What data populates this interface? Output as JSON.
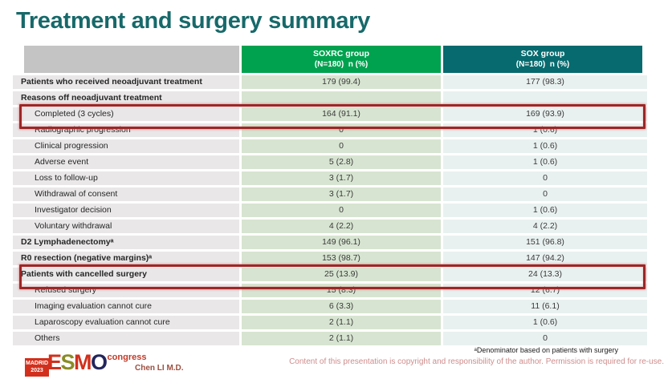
{
  "slide": {
    "title": "Treatment and surgery summary"
  },
  "table": {
    "columns": [
      {
        "label_line1": "SOXRC group",
        "label_line2": "(N=180)  n (%)"
      },
      {
        "label_line1": "SOX group",
        "label_line2": "(N=180)  n (%)"
      }
    ],
    "rows": [
      {
        "label": "Patients who received neoadjuvant treatment",
        "bold": true,
        "indent": false,
        "soxrc": "179 (99.4)",
        "sox": "177 (98.3)",
        "highlighted": false
      },
      {
        "label": "Reasons off neoadjuvant treatment",
        "bold": true,
        "indent": false,
        "soxrc": "",
        "sox": "",
        "highlighted": false
      },
      {
        "label": "Completed (3 cycles)",
        "bold": false,
        "indent": true,
        "soxrc": "164 (91.1)",
        "sox": "169 (93.9)",
        "highlighted": true
      },
      {
        "label": "Radiographic progression",
        "bold": false,
        "indent": true,
        "soxrc": "0",
        "sox": "1 (0.6)",
        "highlighted": false
      },
      {
        "label": "Clinical progression",
        "bold": false,
        "indent": true,
        "soxrc": "0",
        "sox": "1 (0.6)",
        "highlighted": false
      },
      {
        "label": "Adverse event",
        "bold": false,
        "indent": true,
        "soxrc": "5 (2.8)",
        "sox": "1 (0.6)",
        "highlighted": false
      },
      {
        "label": "Loss to follow-up",
        "bold": false,
        "indent": true,
        "soxrc": "3 (1.7)",
        "sox": "0",
        "highlighted": false
      },
      {
        "label": "Withdrawal of consent",
        "bold": false,
        "indent": true,
        "soxrc": "3 (1.7)",
        "sox": "0",
        "highlighted": false
      },
      {
        "label": "Investigator decision",
        "bold": false,
        "indent": true,
        "soxrc": "0",
        "sox": "1 (0.6)",
        "highlighted": false
      },
      {
        "label": "Voluntary withdrawal",
        "bold": false,
        "indent": true,
        "soxrc": "4 (2.2)",
        "sox": "4 (2.2)",
        "highlighted": false
      },
      {
        "label": "D2 Lymphadenectomyᵃ",
        "bold": true,
        "indent": false,
        "soxrc": "149 (96.1)",
        "sox": "151 (96.8)",
        "highlighted": false
      },
      {
        "label": "R0 resection (negative margins)ᵃ",
        "bold": true,
        "indent": false,
        "soxrc": "153 (98.7)",
        "sox": "147 (94.2)",
        "highlighted": false
      },
      {
        "label": "Patients with cancelled surgery",
        "bold": true,
        "indent": false,
        "soxrc": "25 (13.9)",
        "sox": "24 (13.3)",
        "highlighted": true
      },
      {
        "label": "Refused surgery",
        "bold": false,
        "indent": true,
        "soxrc": "15 (8.3)",
        "sox": "12 (6.7)",
        "highlighted": false
      },
      {
        "label": "Imaging evaluation cannot cure",
        "bold": false,
        "indent": true,
        "soxrc": "6 (3.3)",
        "sox": "11 (6.1)",
        "highlighted": false
      },
      {
        "label": "Laparoscopy evaluation cannot cure",
        "bold": false,
        "indent": true,
        "soxrc": "2 (1.1)",
        "sox": "1 (0.6)",
        "highlighted": false
      },
      {
        "label": "Others",
        "bold": false,
        "indent": true,
        "soxrc": "2 (1.1)",
        "sox": "0",
        "highlighted": false
      }
    ]
  },
  "footer": {
    "logo": {
      "badge_line1": "MADRID",
      "badge_line2": "2023",
      "letters": [
        "E",
        "S",
        "M",
        "O"
      ],
      "congress": "congress"
    },
    "author": "Chen LI M.D.",
    "footnote": "ᵃDenominator based on patients with surgery",
    "copyright": "Content of this presentation is copyright and responsibility of the author. Permission is required for re-use."
  },
  "colors": {
    "title_teal": "#17696a",
    "header_green": "#00a24f",
    "header_teal": "#076a6e",
    "header_gray": "#c4c4c4",
    "label_bg": "#e9e7e8",
    "soxrc_bg": "#d7e4d1",
    "sox_bg": "#e9f1f0",
    "highlight_red": "#9e2626",
    "esmo_red": "#d2301c",
    "esmo_olive": "#8a8c25",
    "esmo_navy": "#23265c",
    "author_red": "#9c4f40",
    "copyright_pink": "#cf8d8d"
  }
}
